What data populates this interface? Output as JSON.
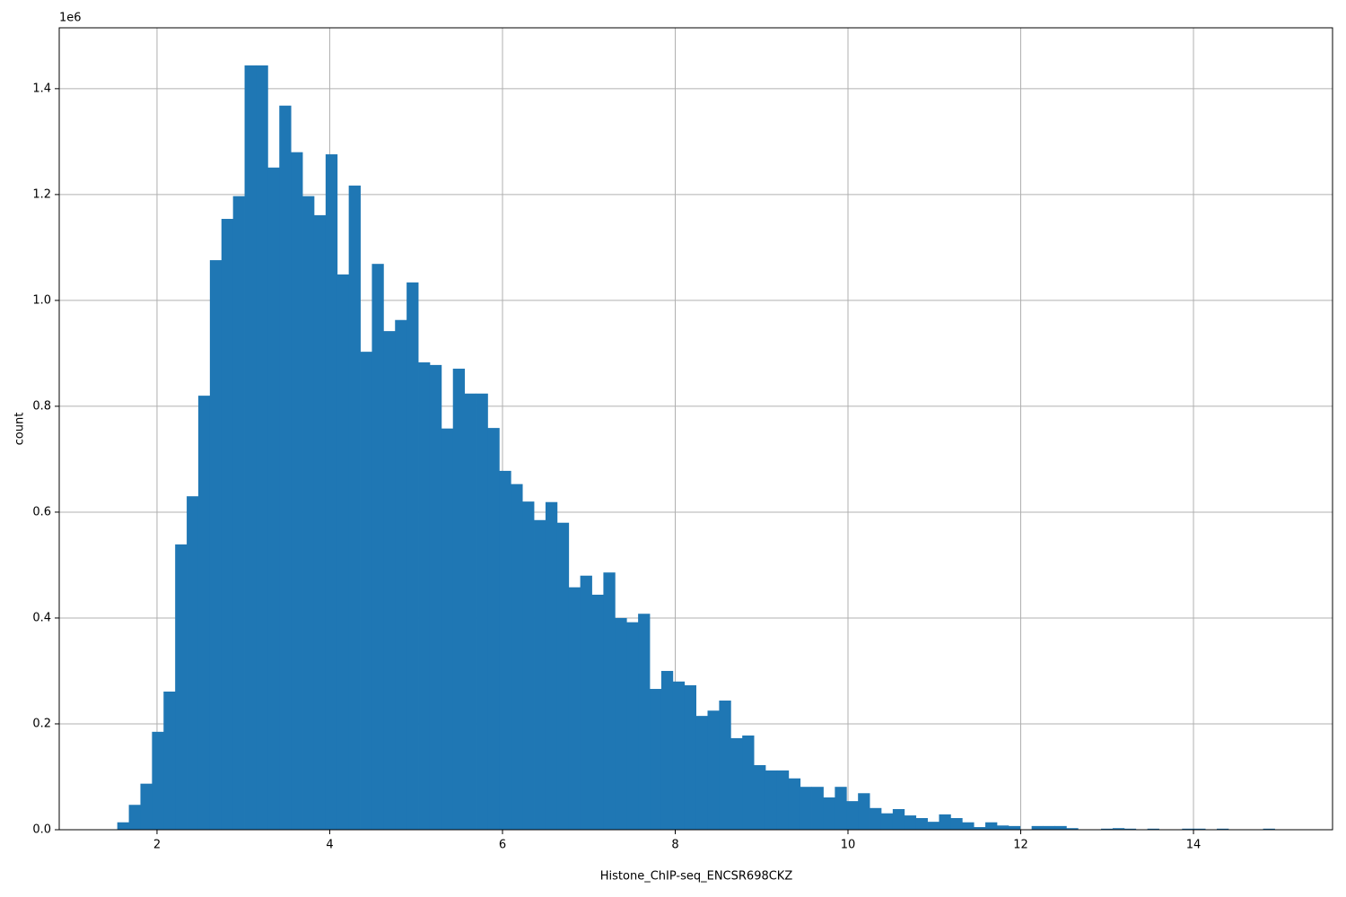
{
  "chart_data": {
    "type": "histogram",
    "x_label": "Histone_ChIP-seq_ENCSR698CKZ",
    "y_label": "count",
    "y_offset_label": "1e6",
    "color": "#1f77b4",
    "grid": true,
    "bins": [
      1.54,
      1.674,
      1.808,
      1.942,
      2.076,
      2.21,
      2.344,
      2.478,
      2.612,
      2.746,
      2.88,
      3.014,
      3.148,
      3.282,
      3.416,
      3.55,
      3.684,
      3.818,
      3.952,
      4.086,
      4.22,
      4.354,
      4.488,
      4.622,
      4.756,
      4.89,
      5.024,
      5.158,
      5.292,
      5.426,
      5.56,
      5.694,
      5.828,
      5.962,
      6.096,
      6.23,
      6.364,
      6.498,
      6.632,
      6.766,
      6.9,
      7.034,
      7.168,
      7.302,
      7.436,
      7.57,
      7.704,
      7.838,
      7.972,
      8.106,
      8.24,
      8.374,
      8.508,
      8.642,
      8.776,
      8.91,
      9.044,
      9.178,
      9.312,
      9.446,
      9.58,
      9.714,
      9.848,
      9.982,
      10.116,
      10.25,
      10.384,
      10.518,
      10.652,
      10.786,
      10.92,
      11.054,
      11.188,
      11.322,
      11.456,
      11.59,
      11.724,
      11.858,
      11.992,
      12.126,
      12.26,
      12.394,
      12.528,
      12.662,
      12.796,
      12.93,
      13.064,
      13.198,
      13.332,
      13.466,
      13.6,
      13.734,
      13.868,
      14.002,
      14.136,
      14.27,
      14.404,
      14.538,
      14.672,
      14.806,
      14.94
    ],
    "counts": [
      0.014,
      0.047,
      0.087,
      0.185,
      0.261,
      0.539,
      0.63,
      0.82,
      1.076,
      1.154,
      1.197,
      1.444,
      1.444,
      1.251,
      1.368,
      1.28,
      1.197,
      1.161,
      1.276,
      1.049,
      1.217,
      0.903,
      1.069,
      0.942,
      0.963,
      1.034,
      0.883,
      0.878,
      0.758,
      0.871,
      0.824,
      0.824,
      0.759,
      0.678,
      0.653,
      0.62,
      0.585,
      0.619,
      0.58,
      0.458,
      0.48,
      0.444,
      0.486,
      0.4,
      0.392,
      0.408,
      0.266,
      0.3,
      0.28,
      0.273,
      0.215,
      0.225,
      0.244,
      0.173,
      0.178,
      0.122,
      0.112,
      0.112,
      0.097,
      0.081,
      0.081,
      0.061,
      0.081,
      0.054,
      0.069,
      0.041,
      0.031,
      0.039,
      0.027,
      0.022,
      0.015,
      0.029,
      0.022,
      0.014,
      0.005,
      0.014,
      0.008,
      0.007,
      0,
      0.007,
      0.007,
      0.007,
      0.003,
      0,
      0,
      0.002,
      0.003,
      0.002,
      0,
      0.002,
      0,
      0,
      0.002,
      0.002,
      0,
      0.002,
      0,
      0,
      0,
      0.002
    ],
    "xlim": [
      0.868,
      15.61
    ],
    "ylim": [
      0,
      1.515
    ],
    "xticks": [
      2,
      4,
      6,
      8,
      10,
      12,
      14
    ],
    "yticks": [
      {
        "value": 0,
        "label": "0.0"
      },
      {
        "value": 0.2,
        "label": "0.2"
      },
      {
        "value": 0.4,
        "label": "0.4"
      },
      {
        "value": 0.6,
        "label": "0.6"
      },
      {
        "value": 0.8,
        "label": "0.8"
      },
      {
        "value": 1,
        "label": "1.0"
      },
      {
        "value": 1.2,
        "label": "1.2"
      },
      {
        "value": 1.4,
        "label": "1.4"
      }
    ]
  }
}
